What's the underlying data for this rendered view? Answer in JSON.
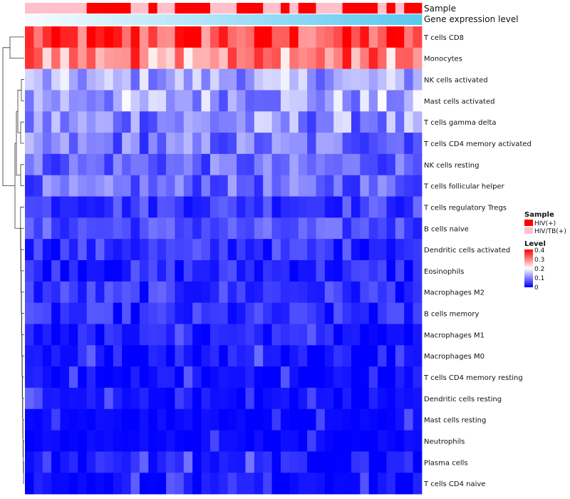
{
  "chart_data": {
    "type": "heatmap",
    "title": "",
    "annotation_tracks": [
      {
        "name": "Sample",
        "kind": "categorical"
      },
      {
        "name": "Gene expression level",
        "kind": "continuous"
      }
    ],
    "rows": [
      "T cells CD8",
      "Monocytes",
      "NK cells activated",
      "Mast cells activated",
      "T cells gamma delta",
      "T cells CD4 memory activated",
      "NK cells resting",
      "T cells follicular helper",
      "T cells regulatory  Tregs",
      "B cells naive",
      "Dendritic cells activated",
      "Eosinophils",
      "Macrophages M2",
      "B cells memory",
      "Macrophages M1",
      "Macrophages M0",
      "T cells CD4 memory resting",
      "Dendritic cells resting",
      "Mast cells resting",
      "Neutrophils",
      "Plasma cells",
      "T cells CD4 naive"
    ],
    "n_samples": 45,
    "sample_groups": [
      "HIV/TB(+)",
      "HIV/TB(+)",
      "HIV/TB(+)",
      "HIV/TB(+)",
      "HIV/TB(+)",
      "HIV/TB(+)",
      "HIV/TB(+)",
      "HIV(+)",
      "HIV(+)",
      "HIV(+)",
      "HIV(+)",
      "HIV(+)",
      "HIV/TB(+)",
      "HIV/TB(+)",
      "HIV(+)",
      "HIV/TB(+)",
      "HIV/TB(+)",
      "HIV(+)",
      "HIV(+)",
      "HIV(+)",
      "HIV(+)",
      "HIV/TB(+)",
      "HIV/TB(+)",
      "HIV/TB(+)",
      "HIV(+)",
      "HIV(+)",
      "HIV(+)",
      "HIV/TB(+)",
      "HIV/TB(+)",
      "HIV(+)",
      "HIV/TB(+)",
      "HIV(+)",
      "HIV(+)",
      "HIV/TB(+)",
      "HIV/TB(+)",
      "HIV/TB(+)",
      "HIV(+)",
      "HIV(+)",
      "HIV(+)",
      "HIV(+)",
      "HIV/TB(+)",
      "HIV(+)",
      "HIV/TB(+)",
      "HIV(+)",
      "HIV(+)"
    ],
    "legend": {
      "sample": {
        "title": "Sample",
        "entries": [
          {
            "label": "HIV(+)",
            "color": "#ff0000"
          },
          {
            "label": "HIV/TB(+)",
            "color": "#ffc0cb"
          }
        ]
      },
      "level": {
        "title": "Level",
        "ticks": [
          "0.4",
          "0.3",
          "0.2",
          "0.1",
          "0"
        ],
        "range": [
          0,
          0.4
        ]
      }
    },
    "color_scale": {
      "low": "#0000ff",
      "mid": "#ffffff",
      "high": "#ff0000",
      "low_value": 0,
      "mid_value": 0.2,
      "high_value": 0.4
    },
    "gene_level_track_colors": [
      "#f5fbff",
      "#5bc8f0"
    ],
    "dendrogram": "hierarchical clustering of rows (left side)"
  }
}
